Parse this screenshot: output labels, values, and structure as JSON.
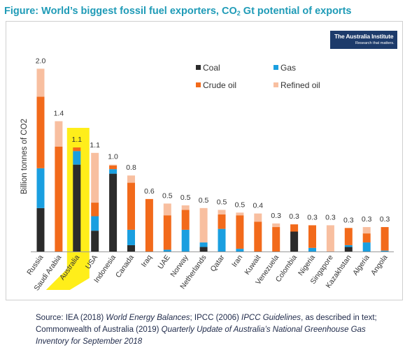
{
  "figure": {
    "title_prefix": "Figure: World’s biggest fossil fuel exporters, CO",
    "title_sub": "2",
    "title_suffix": " Gt potential of exports"
  },
  "logo": {
    "name": "The Australia Institute",
    "tagline": "Research that matters."
  },
  "colors": {
    "coal": "#2b2b2b",
    "gas": "#1a9fe0",
    "crude": "#f26a1b",
    "refined": "#f8bfa0",
    "highlight": "#ffee1a"
  },
  "source": {
    "line1_a": "Source: IEA (2018) ",
    "line1_b": "World Energy Balances",
    "line1_c": "; IPCC (2006) ",
    "line1_d": "IPCC Guidelines",
    "line1_e": ", as described in text;",
    "line2_a": "Commonwealth of Australia (2019) ",
    "line2_b": "Quarterly Update of Australia’s National Greenhouse Gas Inventory for September 2018"
  },
  "chart_data": {
    "type": "bar",
    "stacked": true,
    "ylabel": "Billion tonnes of CO2",
    "ylim": [
      0,
      2.1
    ],
    "grid": false,
    "legend_position": "top-right",
    "highlight_category": "Australia",
    "categories": [
      "Russia",
      "Saudi Arabia",
      "Australia",
      "USA",
      "Indonesia",
      "Canada",
      "Iraq",
      "UAE",
      "Norway",
      "Netherlands",
      "Qatar",
      "Iran",
      "Kuwait",
      "Venezuela",
      "Colombia",
      "Nigeria",
      "Singapore",
      "Kazakhstan",
      "Algeria",
      "Angola"
    ],
    "totals_labels": [
      "2.0",
      "1.4",
      "1.1",
      "1.1",
      "1.0",
      "0.8",
      "0.6",
      "0.5",
      "0.5",
      "0.5",
      "0.5",
      "0.5",
      "0.4",
      "0.3",
      "0.3",
      "0.3",
      "0.3",
      "0.3",
      "0.3",
      "0.3"
    ],
    "series": [
      {
        "name": "Coal",
        "color": "#2b2b2b",
        "values": [
          0.48,
          0,
          0.96,
          0.23,
          0.86,
          0.07,
          0,
          0,
          0,
          0.05,
          0,
          0,
          0,
          0,
          0.22,
          0,
          0,
          0.05,
          0,
          0
        ]
      },
      {
        "name": "Gas",
        "color": "#1a9fe0",
        "values": [
          0.44,
          0,
          0.15,
          0.16,
          0.05,
          0.17,
          0,
          0.02,
          0.24,
          0.05,
          0.25,
          0.03,
          0,
          0,
          0,
          0.04,
          0,
          0.02,
          0.1,
          0.01
        ]
      },
      {
        "name": "Crude oil",
        "color": "#f26a1b",
        "values": [
          0.79,
          1.16,
          0.04,
          0.15,
          0.04,
          0.52,
          0.58,
          0.38,
          0.22,
          0,
          0.16,
          0.37,
          0.33,
          0.27,
          0.08,
          0.25,
          0,
          0.19,
          0.1,
          0.26
        ]
      },
      {
        "name": "Refined oil",
        "color": "#f8bfa0",
        "values": [
          0.31,
          0.28,
          0,
          0.55,
          0.01,
          0.08,
          0,
          0.13,
          0.05,
          0.38,
          0.05,
          0.03,
          0.09,
          0.04,
          0,
          0,
          0.29,
          0,
          0.07,
          0
        ]
      }
    ]
  }
}
